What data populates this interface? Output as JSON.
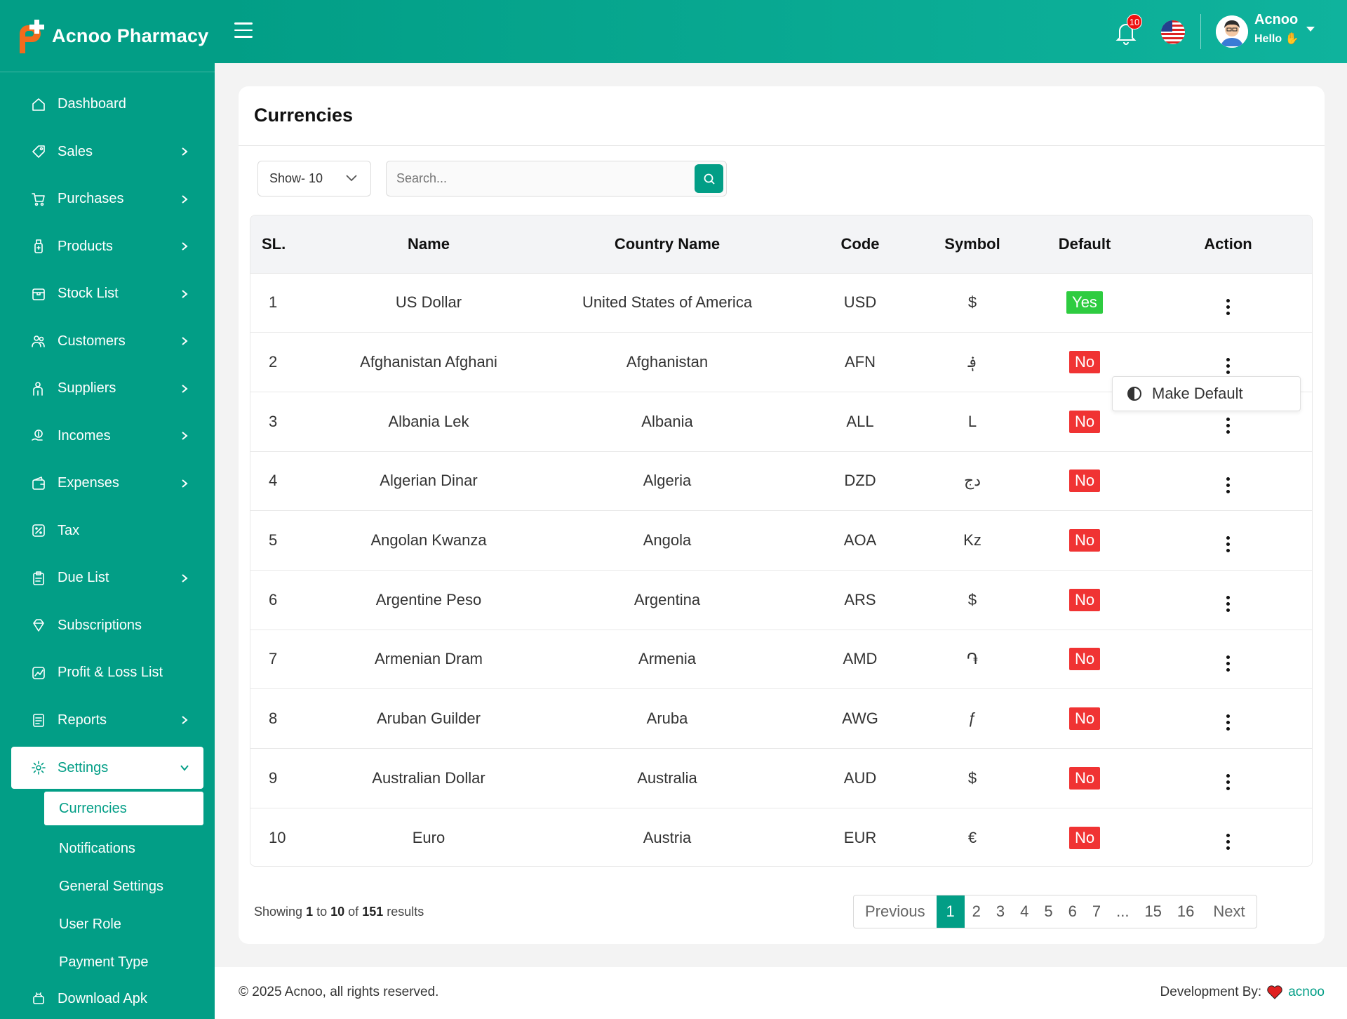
{
  "brand": {
    "name": "Acnoo Pharmacy"
  },
  "sidebar": {
    "items": [
      {
        "label": "Dashboard",
        "icon": "home-icon",
        "has_children": false
      },
      {
        "label": "Sales",
        "icon": "tag-icon",
        "has_children": true
      },
      {
        "label": "Purchases",
        "icon": "cart-icon",
        "has_children": true
      },
      {
        "label": "Products",
        "icon": "bottle-icon",
        "has_children": true
      },
      {
        "label": "Stock List",
        "icon": "box-icon",
        "has_children": true
      },
      {
        "label": "Customers",
        "icon": "users-icon",
        "has_children": true
      },
      {
        "label": "Suppliers",
        "icon": "supplier-icon",
        "has_children": true
      },
      {
        "label": "Incomes",
        "icon": "income-icon",
        "has_children": true
      },
      {
        "label": "Expenses",
        "icon": "wallet-icon",
        "has_children": true
      },
      {
        "label": "Tax",
        "icon": "percent-icon",
        "has_children": false
      },
      {
        "label": "Due List",
        "icon": "clipboard-icon",
        "has_children": true
      },
      {
        "label": "Subscriptions",
        "icon": "diamond-icon",
        "has_children": false
      },
      {
        "label": "Profit & Loss List",
        "icon": "chart-icon",
        "has_children": false
      },
      {
        "label": "Reports",
        "icon": "report-icon",
        "has_children": true
      },
      {
        "label": "Settings",
        "icon": "gear-icon",
        "has_children": true,
        "active": true
      }
    ],
    "settings_sub": [
      "Currencies",
      "Notifications",
      "General Settings",
      "User Role",
      "Payment Type"
    ],
    "last_item": "Download Apk"
  },
  "header": {
    "notification_count": "10",
    "user_name": "Acnoo",
    "user_greeting": "Hello"
  },
  "page": {
    "title": "Currencies",
    "show_label": "Show- 10",
    "search_placeholder": "Search..."
  },
  "table": {
    "columns": [
      "SL.",
      "Name",
      "Country Name",
      "Code",
      "Symbol",
      "Default",
      "Action"
    ],
    "rows": [
      {
        "sl": "1",
        "name": "US Dollar",
        "country": "United States of America",
        "code": "USD",
        "symbol": "$",
        "default": "Yes"
      },
      {
        "sl": "2",
        "name": "Afghanistan Afghani",
        "country": "Afghanistan",
        "code": "AFN",
        "symbol": "؋",
        "default": "No"
      },
      {
        "sl": "3",
        "name": "Albania Lek",
        "country": "Albania",
        "code": "ALL",
        "symbol": "L",
        "default": "No"
      },
      {
        "sl": "4",
        "name": "Algerian Dinar",
        "country": "Algeria",
        "code": "DZD",
        "symbol": "دج",
        "default": "No"
      },
      {
        "sl": "5",
        "name": "Angolan Kwanza",
        "country": "Angola",
        "code": "AOA",
        "symbol": "Kz",
        "default": "No"
      },
      {
        "sl": "6",
        "name": "Argentine Peso",
        "country": "Argentina",
        "code": "ARS",
        "symbol": "$",
        "default": "No"
      },
      {
        "sl": "7",
        "name": "Armenian Dram",
        "country": "Armenia",
        "code": "AMD",
        "symbol": "֏",
        "default": "No"
      },
      {
        "sl": "8",
        "name": "Aruban Guilder",
        "country": "Aruba",
        "code": "AWG",
        "symbol": "ƒ",
        "default": "No"
      },
      {
        "sl": "9",
        "name": "Australian Dollar",
        "country": "Australia",
        "code": "AUD",
        "symbol": "$",
        "default": "No"
      },
      {
        "sl": "10",
        "name": "Euro",
        "country": "Austria",
        "code": "EUR",
        "symbol": "€",
        "default": "No"
      }
    ]
  },
  "dropdown": {
    "label": "Make Default"
  },
  "summary": {
    "prefix": "Showing",
    "from": "1",
    "to_word": "to",
    "to": "10",
    "of_word": "of",
    "total": "151",
    "suffix": "results"
  },
  "pagination": {
    "prev": "Previous",
    "pages": [
      "1",
      "2",
      "3",
      "4",
      "5",
      "6",
      "7",
      "...",
      "15",
      "16"
    ],
    "current": "1",
    "next": "Next"
  },
  "footer": {
    "copyright": "© 2025 Acnoo, all rights reserved.",
    "dev_label": "Development By:",
    "dev_link": "acnoo"
  },
  "colors": {
    "primary": "#029e86",
    "yes": "#2ecc40",
    "no": "#f03333"
  }
}
